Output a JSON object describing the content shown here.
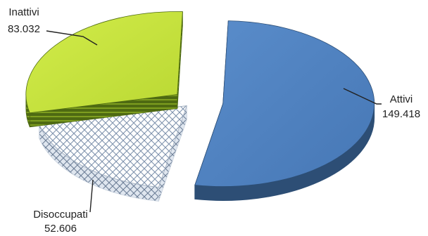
{
  "chart_data": {
    "type": "pie",
    "title": "",
    "exploded": true,
    "three_d": true,
    "legend": "none",
    "slices": [
      {
        "label": "Attivi",
        "value": 149.418,
        "value_text": "149.418",
        "color": "#4F81BD",
        "side_color": "#2D4E75",
        "pattern": "solid"
      },
      {
        "label": "Disoccupati",
        "value": 52.606,
        "value_text": "52.606",
        "color": "#F2F5F9",
        "side_color": "#C9D2DE",
        "pattern": "diamond-hatch"
      },
      {
        "label": "Inattivi",
        "value": 83.032,
        "value_text": "83.032",
        "color": "#C4E23C",
        "side_color": "#4E6A12",
        "pattern": "solid-stripes"
      }
    ]
  }
}
